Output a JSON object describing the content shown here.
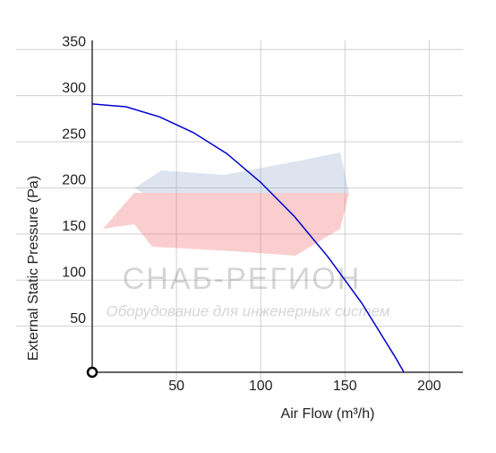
{
  "chart_data": {
    "type": "line",
    "x_label": "Air Flow (m³/h)",
    "y_label": "External Static Pressure (Pa)",
    "x": [
      0,
      20,
      40,
      60,
      80,
      100,
      120,
      140,
      160,
      180,
      185
    ],
    "series": [
      {
        "color": "#0000cc",
        "values": [
          291,
          288,
          277,
          260,
          237,
          206,
          169,
          125,
          75,
          16,
          0
        ]
      }
    ],
    "xlim": [
      0,
      220
    ],
    "xticks": [
      50,
      100,
      150,
      200
    ],
    "ylim": [
      0,
      360
    ],
    "yticks": [
      50,
      100,
      150,
      200,
      250,
      300,
      350
    ],
    "grid": true,
    "watermark": {
      "title": "СНАБ-РЕГИОН",
      "subtitle": "Оборудование для инженерных систем"
    }
  }
}
